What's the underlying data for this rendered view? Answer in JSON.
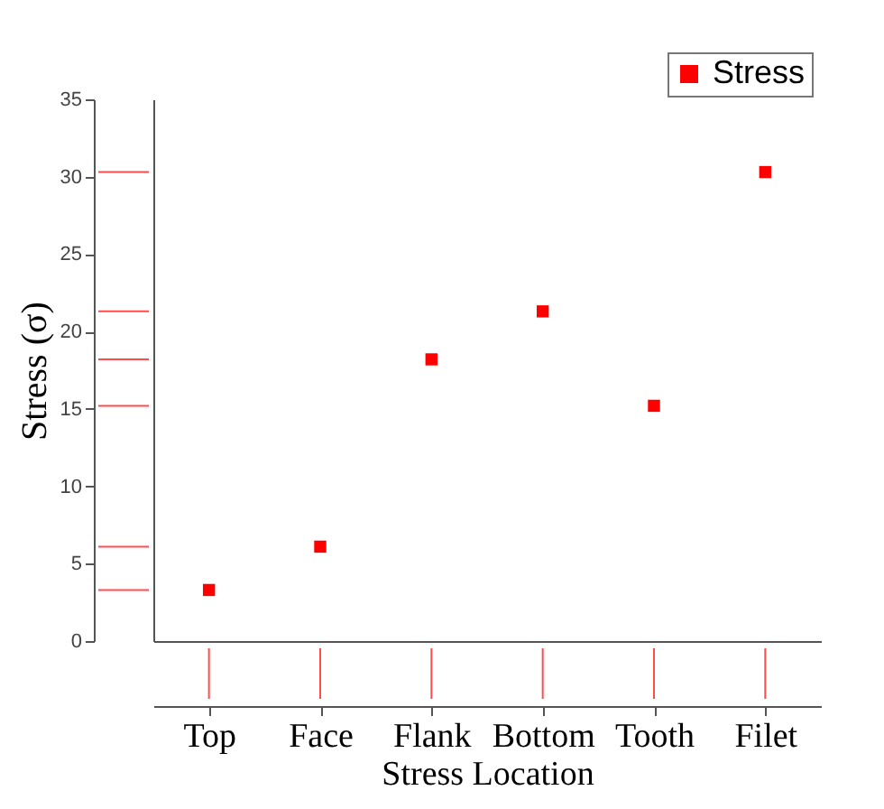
{
  "chart_data": {
    "type": "scatter",
    "xlabel": "Stress Location",
    "ylabel": "Stress (σ)",
    "categories": [
      "Top",
      "Face",
      "Flank",
      "Bottom",
      "Tooth",
      "Filet"
    ],
    "series": [
      {
        "name": "Stress",
        "color": "#ff0000",
        "values": [
          3.3,
          6.1,
          18.2,
          21.3,
          15.2,
          30.3
        ]
      }
    ],
    "ylim": [
      0,
      35
    ],
    "yticks": [
      0,
      5,
      10,
      15,
      20,
      25,
      30,
      35
    ],
    "marker": "square",
    "legend": "top right"
  }
}
